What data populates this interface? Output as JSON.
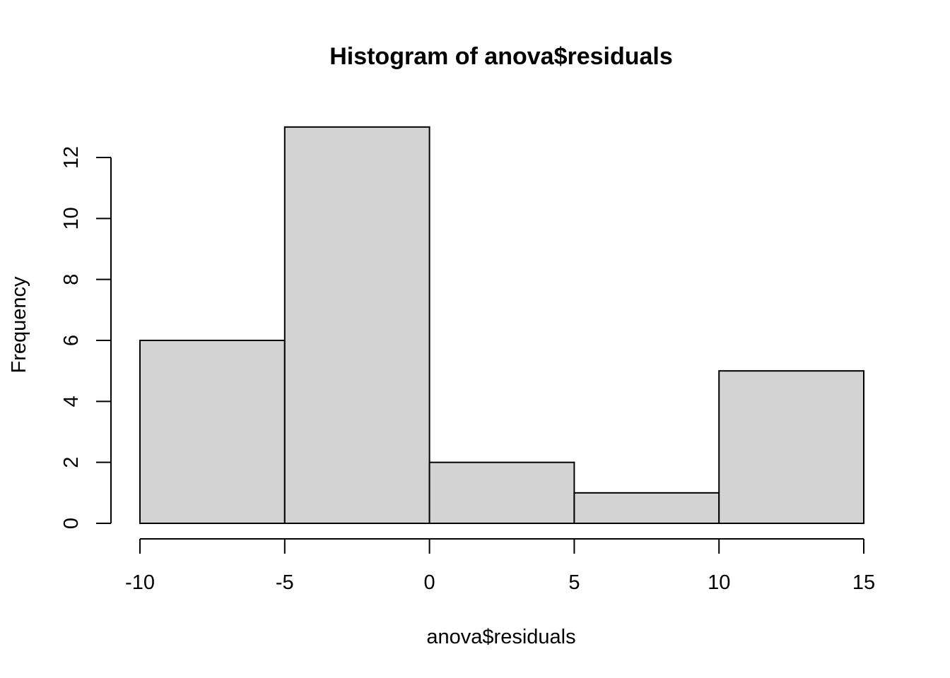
{
  "chart_data": {
    "type": "bar",
    "subtype": "histogram",
    "title": "Histogram of anova$residuals",
    "xlabel": "anova$residuals",
    "ylabel": "Frequency",
    "bins": [
      {
        "from": -10,
        "to": -5,
        "count": 6
      },
      {
        "from": -5,
        "to": 0,
        "count": 13
      },
      {
        "from": 0,
        "to": 5,
        "count": 2
      },
      {
        "from": 5,
        "to": 10,
        "count": 1
      },
      {
        "from": 10,
        "to": 15,
        "count": 5
      }
    ],
    "xlim": [
      -10,
      15
    ],
    "ylim": [
      0,
      13
    ],
    "x_ticks": [
      -10,
      -5,
      0,
      5,
      10,
      15
    ],
    "x_tick_labels": [
      "-10",
      "-5",
      "0",
      "5",
      "10",
      "15"
    ],
    "y_ticks": [
      0,
      2,
      4,
      6,
      8,
      10,
      12
    ],
    "y_tick_labels": [
      "0",
      "2",
      "4",
      "6",
      "8",
      "10",
      "12"
    ],
    "grid": false,
    "legend": "none",
    "bar_color": "#d3d3d3",
    "edge_color": "#000000"
  }
}
